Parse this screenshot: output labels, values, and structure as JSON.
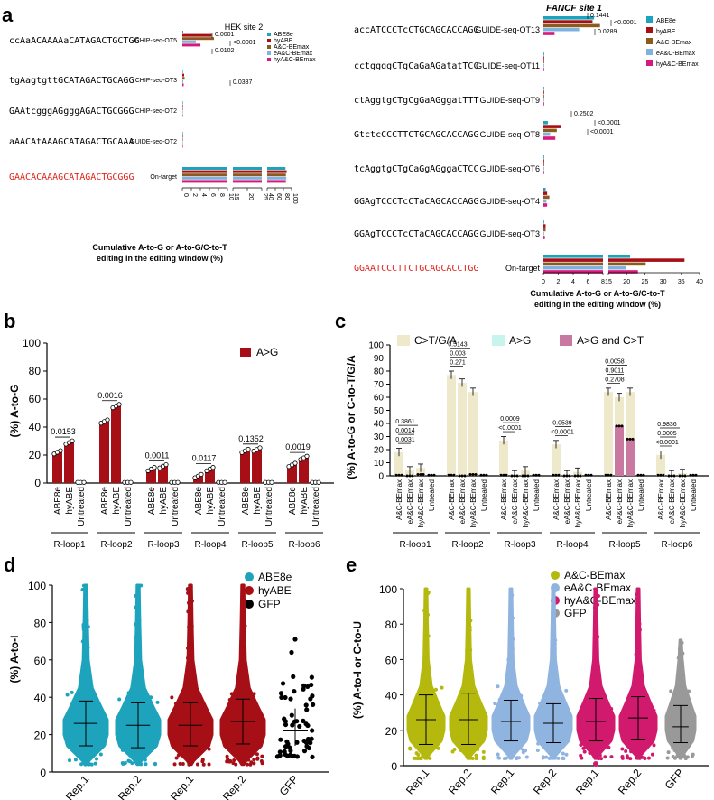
{
  "panel_labels": {
    "a": "a",
    "b": "b",
    "c": "c",
    "d": "d",
    "e": "e"
  },
  "colors": {
    "abe8e": "#1ea3bd",
    "hyabe": "#a50f15",
    "ac": "#8b5a1f",
    "eac": "#7fb2df",
    "hyac": "#d6197a",
    "gfp": "#000000",
    "ac_green": "#b5b80d",
    "eac_blue": "#90b4e0",
    "hyac_pink": "#d11a6e",
    "gfp_gray": "#999999",
    "c_ct": "#efe9cc",
    "c_ag": "#c8f4ee",
    "c_both": "#c9789f",
    "red_seq": "#e0251c"
  },
  "panel_a_left": {
    "title": "HEK site 2",
    "legend": [
      "ABE8e",
      "hyABE",
      "A&C-BEmax",
      "eA&C-BEmax",
      "hyA&C-BEmax"
    ],
    "sequences": [
      "ccAaACAAAAaCATAGACTGCTGG",
      "tgAagtgttGCATAGACTGCAGG",
      "GAAtcgggAGgggAGACTGCGGG",
      "aAACAtAAAGCATAGACTGCAAA",
      "GAACACAAAGCATAGACTGCGGG"
    ],
    "rows": [
      "CHIP-seq-OT5",
      "CHIP-seq-OT3",
      "CHIP-seq-OT2",
      "GUIDE-seq-OT2",
      "On-target"
    ],
    "pvals": [
      "0.0001",
      "<0.0001",
      "0.0102",
      "0.0337"
    ],
    "ticks": [
      "0",
      "2",
      "4",
      "6",
      "8",
      "10",
      "15",
      "20",
      "25",
      "40",
      "60",
      "80",
      "100"
    ],
    "xlabel_line1": "Cumulative A-to-G or A-to-G/C-to-T",
    "xlabel_line2": "editing in the editing window (%)",
    "chart_data": {
      "type": "bar",
      "title": "HEK site 2",
      "categories": [
        "CHIP-seq-OT5",
        "CHIP-seq-OT3",
        "CHIP-seq-OT2",
        "GUIDE-seq-OT2",
        "On-target"
      ],
      "series": [
        {
          "name": "ABE8e",
          "values": [
            0.2,
            0.05,
            0.05,
            0.05,
            85
          ]
        },
        {
          "name": "hyABE",
          "values": [
            6.5,
            0.4,
            0.1,
            0.1,
            88
          ]
        },
        {
          "name": "A&C-BEmax",
          "values": [
            7,
            0.5,
            0.1,
            0.1,
            86
          ]
        },
        {
          "name": "eA&C-BEmax",
          "values": [
            3,
            0.2,
            0.05,
            0.05,
            87
          ]
        },
        {
          "name": "hyA&C-BEmax",
          "values": [
            4,
            0.3,
            0.1,
            0.1,
            86
          ]
        }
      ]
    }
  },
  "panel_a_right": {
    "title": "FANCF site 1",
    "legend": [
      "ABE8e",
      "hyABE",
      "A&C-BEmax",
      "eA&C-BEmax",
      "hyA&C-BEmax"
    ],
    "sequences": [
      "accATCCCTcCTGCAGCACCAGG",
      "cctggggCTgCaGaAGatatTCC",
      "ctAggtgCTgCgGaAGggatTTT",
      "GtctcCCCTTCTGCAGCACCAGG",
      "tcAggtgCTgCaGgAGggaCTCC",
      "GGAgTCCCTcCTaCAGCACCAGG",
      "GGAgTCCCTcCTaCAGCACCAGG",
      "GGAATCCCTTCTGCAGCACCTGG"
    ],
    "rows": [
      "GUIDE-seq-OT13",
      "GUIDE-seq-OT11",
      "GUIDE-seq-OT9",
      "GUIDE-seq-OT8",
      "GUIDE-seq-OT6",
      "GUIDE-seq-OT4",
      "GUIDE-seq-OT3",
      "On-target"
    ],
    "pvals": [
      "0.1441",
      "<0.0001",
      "0.0289",
      "0.2502",
      "<0.0001",
      "<0.0001"
    ],
    "ticks": [
      "0",
      "2",
      "4",
      "6",
      "8",
      "15",
      "20",
      "25",
      "30",
      "35",
      "40"
    ],
    "xlabel_line1": "Cumulative A-to-G or A-to-G/C-to-T",
    "xlabel_line2": "editing in the editing window (%)",
    "chart_data": {
      "type": "bar",
      "title": "FANCF site 1",
      "categories": [
        "GUIDE-seq-OT13",
        "GUIDE-seq-OT11",
        "GUIDE-seq-OT9",
        "GUIDE-seq-OT8",
        "GUIDE-seq-OT6",
        "GUIDE-seq-OT4",
        "GUIDE-seq-OT3",
        "On-target"
      ],
      "series": [
        {
          "name": "ABE8e",
          "values": [
            6.8,
            0.05,
            0.05,
            0.6,
            0.1,
            0.3,
            0.1,
            22
          ]
        },
        {
          "name": "hyABE",
          "values": [
            6.6,
            0.05,
            0.05,
            2.4,
            0.1,
            0.5,
            0.3,
            36
          ]
        },
        {
          "name": "A&C-BEmax",
          "values": [
            7.6,
            0.1,
            0.05,
            1.8,
            0.1,
            0.8,
            0.3,
            26
          ]
        },
        {
          "name": "eA&C-BEmax",
          "values": [
            4.8,
            0.05,
            0.05,
            0.9,
            0.05,
            0.4,
            0.1,
            21
          ]
        },
        {
          "name": "hyA&C-BEmax",
          "values": [
            1.5,
            0.05,
            0.05,
            1.6,
            0.05,
            0.5,
            0.2,
            24
          ]
        }
      ]
    }
  },
  "panel_b": {
    "ylabel": "(%) A-to-G",
    "legend": "A>G",
    "yticks": [
      "0",
      "20",
      "40",
      "60",
      "80",
      "100"
    ],
    "groups": [
      "R-loop1",
      "R-loop2",
      "R-loop3",
      "R-loop4",
      "R-loop5",
      "R-loop6"
    ],
    "bar_labels": [
      "ABE8e",
      "hyABE",
      "Untreated"
    ],
    "pvals": [
      "0.0153",
      "0.0016",
      "0.0011",
      "0.0117",
      "0.1352",
      "0.0019"
    ],
    "chart_data": {
      "type": "bar",
      "ylim": [
        0,
        100
      ],
      "categories": [
        "R-loop1",
        "R-loop2",
        "R-loop3",
        "R-loop4",
        "R-loop5",
        "R-loop6"
      ],
      "series": [
        {
          "name": "ABE8e",
          "values": [
            22,
            44,
            10,
            5,
            23,
            13
          ]
        },
        {
          "name": "hyABE",
          "values": [
            29,
            55,
            12,
            10,
            24,
            18
          ]
        },
        {
          "name": "Untreated",
          "values": [
            0.3,
            0.3,
            0.2,
            0.2,
            0.3,
            0.2
          ]
        }
      ]
    }
  },
  "panel_c": {
    "ylabel": "(%) A-to-G or C-to-T/G/A",
    "legend": [
      "C>T/G/A",
      "A>G",
      "A>G and C>T"
    ],
    "yticks": [
      "0",
      "10",
      "20",
      "30",
      "40",
      "50",
      "60",
      "70",
      "80",
      "90",
      "100"
    ],
    "groups": [
      "R-loop1",
      "R-loop2",
      "R-loop3",
      "R-loop4",
      "R-loop5",
      "R-loop6"
    ],
    "bar_labels": [
      "A&C-BEmax",
      "eA&C-BEmax",
      "hyA&C-BEmax",
      "Untreated"
    ],
    "pvals": [
      [
        "0.0031",
        "0.0014",
        "0.3861"
      ],
      [
        "0.271",
        "0.003",
        "0.5143"
      ],
      [
        "<0.0001",
        "0.0009"
      ],
      [
        "<0.0001",
        "0.0539"
      ],
      [
        "0.2708",
        "0.9011",
        "0.0058"
      ],
      [
        "<0.0001",
        "0.0005",
        "0.9836"
      ]
    ],
    "chart_data": {
      "type": "bar",
      "ylim": [
        0,
        100
      ],
      "categories": [
        "R-loop1",
        "R-loop2",
        "R-loop3",
        "R-loop4",
        "R-loop5",
        "R-loop6"
      ],
      "series": [
        {
          "name": "A&C-BEmax C>T/G/A",
          "values": [
            18,
            77,
            27,
            24,
            64,
            16
          ]
        },
        {
          "name": "eA&C-BEmax C>T/G/A",
          "values": [
            4,
            71,
            1,
            1,
            60,
            1
          ]
        },
        {
          "name": "hyA&C-BEmax C>T/G/A",
          "values": [
            6,
            64,
            4,
            3,
            64,
            2
          ]
        },
        {
          "name": "Untreated",
          "values": [
            0,
            0,
            0,
            0,
            0,
            0
          ]
        },
        {
          "name": "eA&C-BEmax A>G and C>T",
          "values": [
            0,
            0,
            0,
            0,
            38,
            0
          ]
        },
        {
          "name": "hyA&C-BEmax A>G and C>T",
          "values": [
            1,
            1,
            0,
            0,
            28,
            0
          ]
        }
      ]
    }
  },
  "panel_d": {
    "ylabel": "(%) A-to-I",
    "legend": [
      "ABE8e",
      "hyABE",
      "GFP"
    ],
    "yticks": [
      "0",
      "20",
      "40",
      "60",
      "80",
      "100"
    ],
    "xlabels": [
      "Rep.1",
      "Rep.2",
      "Rep.1",
      "Rep.2",
      "GFP"
    ],
    "chart_data": {
      "type": "scatter",
      "ylim": [
        0,
        100
      ],
      "categories": [
        "Rep.1",
        "Rep.2",
        "Rep.1",
        "Rep.2",
        "GFP"
      ],
      "series": [
        {
          "name": "ABE8e",
          "mean": [
            26,
            25,
            null,
            null,
            null
          ],
          "sd_low": [
            14,
            13,
            null,
            null,
            null
          ],
          "sd_high": [
            38,
            37,
            null,
            null,
            null
          ],
          "max": [
            100,
            100,
            null,
            null,
            null
          ]
        },
        {
          "name": "hyABE",
          "mean": [
            null,
            null,
            25,
            27,
            null
          ],
          "sd_low": [
            null,
            null,
            14,
            15,
            null
          ],
          "sd_high": [
            null,
            null,
            37,
            39,
            null
          ],
          "max": [
            null,
            null,
            100,
            100,
            null
          ]
        },
        {
          "name": "GFP",
          "mean": [
            null,
            null,
            null,
            null,
            22
          ],
          "sd_low": [
            null,
            null,
            null,
            null,
            14
          ],
          "sd_high": [
            null,
            null,
            null,
            null,
            34
          ],
          "max": [
            null,
            null,
            null,
            null,
            71
          ]
        }
      ]
    }
  },
  "panel_e": {
    "ylabel": "(%) A-to-I or C-to-U",
    "legend": [
      "A&C-BEmax",
      "eA&C-BEmax",
      "hyA&C-BEmax",
      "GFP"
    ],
    "yticks": [
      "0",
      "20",
      "40",
      "60",
      "80",
      "100"
    ],
    "xlabels": [
      "Rep.1",
      "Rep.2",
      "Rep.1",
      "Rep.2",
      "Rep.1",
      "Rep.2",
      "GFP"
    ],
    "chart_data": {
      "type": "scatter",
      "ylim": [
        0,
        100
      ],
      "categories": [
        "Rep.1",
        "Rep.2",
        "Rep.1",
        "Rep.2",
        "Rep.1",
        "Rep.2",
        "GFP"
      ],
      "series": [
        {
          "name": "A&C-BEmax",
          "mean": [
            26,
            26
          ],
          "max": [
            100,
            100
          ]
        },
        {
          "name": "eA&C-BEmax",
          "mean": [
            25,
            24
          ],
          "max": [
            100,
            100
          ]
        },
        {
          "name": "hyA&C-BEmax",
          "mean": [
            25,
            27
          ],
          "max": [
            100,
            100
          ]
        },
        {
          "name": "GFP",
          "mean": [
            22
          ],
          "max": [
            71
          ]
        }
      ]
    }
  }
}
